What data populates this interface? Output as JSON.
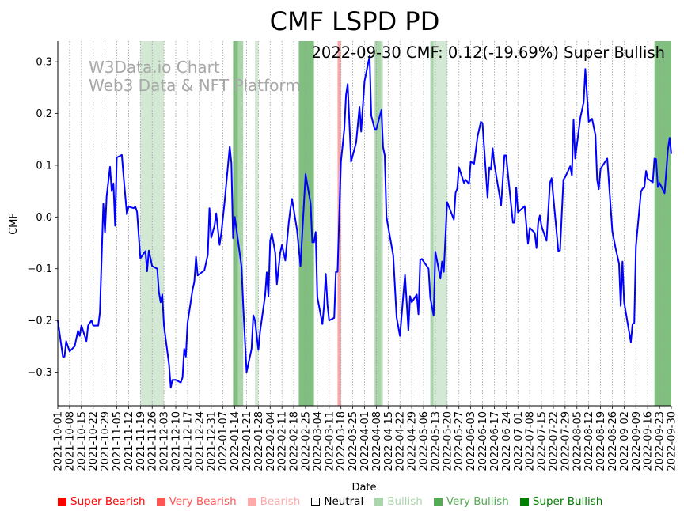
{
  "chart_data": {
    "type": "line",
    "title": "CMF LSPD PD",
    "annotation": "2022-09-30 CMF: 0.12(-19.69%) Super Bullish",
    "watermark": [
      "W3Data.io Chart",
      "Web3 Data & NFT Platform"
    ],
    "xlabel": "Date",
    "ylabel": "CMF",
    "x_start_date": "2021-10-01",
    "x_unit": "days since 2021-10-01",
    "xlim": [
      0,
      364
    ],
    "ylim": [
      -0.365,
      0.34
    ],
    "yticks": [
      -0.3,
      -0.2,
      -0.1,
      0.0,
      0.1,
      0.2,
      0.3
    ],
    "ytick_labels": [
      "−0.3",
      "−0.2",
      "−0.1",
      "0.0",
      "0.1",
      "0.2",
      "0.3"
    ],
    "xtick_labels": [
      "2021-10-01",
      "2021-10-08",
      "2021-10-15",
      "2021-10-22",
      "2021-10-29",
      "2021-11-05",
      "2021-11-12",
      "2021-11-19",
      "2021-11-26",
      "2021-12-03",
      "2021-12-10",
      "2021-12-17",
      "2021-12-24",
      "2021-12-31",
      "2022-01-07",
      "2022-01-14",
      "2022-01-21",
      "2022-01-28",
      "2022-02-04",
      "2022-02-11",
      "2022-02-18",
      "2022-02-25",
      "2022-03-04",
      "2022-03-11",
      "2022-03-18",
      "2022-03-25",
      "2022-04-01",
      "2022-04-08",
      "2022-04-15",
      "2022-04-22",
      "2022-04-29",
      "2022-05-06",
      "2022-05-13",
      "2022-05-20",
      "2022-05-27",
      "2022-06-03",
      "2022-06-10",
      "2022-06-17",
      "2022-06-24",
      "2022-07-01",
      "2022-07-08",
      "2022-07-15",
      "2022-07-22",
      "2022-07-29",
      "2022-08-05",
      "2022-08-12",
      "2022-08-19",
      "2022-08-26",
      "2022-09-02",
      "2022-09-09",
      "2022-09-16",
      "2022-09-23",
      "2022-09-30"
    ],
    "grid": "vertical dotted at each weekly tick",
    "series": [
      {
        "name": "CMF",
        "color": "#0000ff",
        "points": [
          [
            0,
            -0.2
          ],
          [
            3,
            -0.27
          ],
          [
            4,
            -0.27
          ],
          [
            5,
            -0.24
          ],
          [
            7,
            -0.26
          ],
          [
            10,
            -0.25
          ],
          [
            12,
            -0.22
          ],
          [
            13,
            -0.23
          ],
          [
            14,
            -0.21
          ],
          [
            17,
            -0.24
          ],
          [
            18,
            -0.21
          ],
          [
            20,
            -0.2
          ],
          [
            21,
            -0.21
          ],
          [
            24,
            -0.21
          ],
          [
            25,
            -0.185
          ],
          [
            27,
            0.026
          ],
          [
            28,
            -0.03
          ],
          [
            29,
            0.04
          ],
          [
            31,
            0.097
          ],
          [
            32,
            0.05
          ],
          [
            33,
            0.065
          ],
          [
            34,
            -0.017
          ],
          [
            35,
            0.115
          ],
          [
            38,
            0.12
          ],
          [
            39,
            0.08
          ],
          [
            41,
            0.005
          ],
          [
            42,
            0.02
          ],
          [
            45,
            0.017
          ],
          [
            46,
            0.02
          ],
          [
            47,
            0.01
          ],
          [
            49,
            -0.08
          ],
          [
            52,
            -0.066
          ],
          [
            53,
            -0.105
          ],
          [
            54,
            -0.065
          ],
          [
            56,
            -0.095
          ],
          [
            59,
            -0.1
          ],
          [
            60,
            -0.145
          ],
          [
            61,
            -0.165
          ],
          [
            62,
            -0.15
          ],
          [
            63,
            -0.21
          ],
          [
            66,
            -0.285
          ],
          [
            67,
            -0.33
          ],
          [
            68,
            -0.315
          ],
          [
            70,
            -0.315
          ],
          [
            73,
            -0.32
          ],
          [
            74,
            -0.31
          ],
          [
            75,
            -0.255
          ],
          [
            76,
            -0.27
          ],
          [
            77,
            -0.205
          ],
          [
            80,
            -0.14
          ],
          [
            81,
            -0.125
          ],
          [
            82,
            -0.077
          ],
          [
            83,
            -0.113
          ],
          [
            87,
            -0.103
          ],
          [
            89,
            -0.073
          ],
          [
            90,
            0.017
          ],
          [
            91,
            -0.04
          ],
          [
            93,
            -0.017
          ],
          [
            94,
            0.007
          ],
          [
            96,
            -0.054
          ],
          [
            97,
            -0.032
          ],
          [
            99,
            0.03
          ],
          [
            101,
            0.1
          ],
          [
            102,
            0.136
          ],
          [
            103,
            0.104
          ],
          [
            104,
            -0.041
          ],
          [
            105,
            0.0
          ],
          [
            109,
            -0.096
          ],
          [
            110,
            -0.17
          ],
          [
            112,
            -0.3
          ],
          [
            115,
            -0.255
          ],
          [
            116,
            -0.19
          ],
          [
            117,
            -0.2
          ],
          [
            119,
            -0.257
          ],
          [
            120,
            -0.222
          ],
          [
            123,
            -0.152
          ],
          [
            124,
            -0.107
          ],
          [
            125,
            -0.153
          ],
          [
            126,
            -0.046
          ],
          [
            127,
            -0.032
          ],
          [
            129,
            -0.069
          ],
          [
            130,
            -0.13
          ],
          [
            132,
            -0.069
          ],
          [
            133,
            -0.054
          ],
          [
            135,
            -0.084
          ],
          [
            137,
            -0.012
          ],
          [
            138,
            0.015
          ],
          [
            139,
            0.035
          ],
          [
            142,
            -0.026
          ],
          [
            144,
            -0.095
          ],
          [
            147,
            0.083
          ],
          [
            150,
            0.026
          ],
          [
            151,
            -0.049
          ],
          [
            152,
            -0.049
          ],
          [
            153,
            -0.029
          ],
          [
            154,
            -0.155
          ],
          [
            157,
            -0.207
          ],
          [
            158,
            -0.17
          ],
          [
            159,
            -0.11
          ],
          [
            160,
            -0.17
          ],
          [
            161,
            -0.2
          ],
          [
            164,
            -0.195
          ],
          [
            165,
            -0.106
          ],
          [
            166,
            -0.106
          ],
          [
            168,
            0.107
          ],
          [
            170,
            0.171
          ],
          [
            171,
            0.236
          ],
          [
            172,
            0.257
          ],
          [
            174,
            0.107
          ],
          [
            177,
            0.144
          ],
          [
            179,
            0.213
          ],
          [
            180,
            0.165
          ],
          [
            182,
            0.263
          ],
          [
            185,
            0.311
          ],
          [
            186,
            0.196
          ],
          [
            188,
            0.17
          ],
          [
            189,
            0.17
          ],
          [
            192,
            0.207
          ],
          [
            193,
            0.135
          ],
          [
            194,
            0.119
          ],
          [
            195,
            0.0
          ],
          [
            199,
            -0.074
          ],
          [
            201,
            -0.194
          ],
          [
            203,
            -0.23
          ],
          [
            206,
            -0.112
          ],
          [
            208,
            -0.219
          ],
          [
            209,
            -0.153
          ],
          [
            210,
            -0.165
          ],
          [
            213,
            -0.15
          ],
          [
            214,
            -0.188
          ],
          [
            215,
            -0.083
          ],
          [
            216,
            -0.081
          ],
          [
            220,
            -0.1
          ],
          [
            221,
            -0.156
          ],
          [
            223,
            -0.191
          ],
          [
            224,
            -0.067
          ],
          [
            227,
            -0.119
          ],
          [
            228,
            -0.086
          ],
          [
            229,
            -0.106
          ],
          [
            231,
            0.029
          ],
          [
            233,
            0.012
          ],
          [
            235,
            -0.005
          ],
          [
            236,
            0.047
          ],
          [
            237,
            0.055
          ],
          [
            238,
            0.096
          ],
          [
            241,
            0.066
          ],
          [
            242,
            0.072
          ],
          [
            244,
            0.064
          ],
          [
            245,
            0.107
          ],
          [
            247,
            0.103
          ],
          [
            249,
            0.155
          ],
          [
            251,
            0.184
          ],
          [
            252,
            0.181
          ],
          [
            255,
            0.038
          ],
          [
            256,
            0.096
          ],
          [
            257,
            0.092
          ],
          [
            258,
            0.133
          ],
          [
            259,
            0.103
          ],
          [
            263,
            0.023
          ],
          [
            265,
            0.119
          ],
          [
            266,
            0.119
          ],
          [
            270,
            -0.011
          ],
          [
            271,
            -0.011
          ],
          [
            272,
            0.057
          ],
          [
            273,
            0.009
          ],
          [
            277,
            0.021
          ],
          [
            279,
            -0.052
          ],
          [
            280,
            -0.021
          ],
          [
            283,
            -0.031
          ],
          [
            284,
            -0.06
          ],
          [
            285,
            -0.012
          ],
          [
            286,
            0.003
          ],
          [
            287,
            -0.018
          ],
          [
            290,
            -0.046
          ],
          [
            292,
            0.066
          ],
          [
            293,
            0.075
          ],
          [
            297,
            -0.066
          ],
          [
            298,
            -0.064
          ],
          [
            300,
            0.072
          ],
          [
            301,
            0.077
          ],
          [
            304,
            0.098
          ],
          [
            305,
            0.08
          ],
          [
            306,
            0.188
          ],
          [
            307,
            0.113
          ],
          [
            310,
            0.191
          ],
          [
            312,
            0.222
          ],
          [
            313,
            0.286
          ],
          [
            315,
            0.184
          ],
          [
            317,
            0.19
          ],
          [
            319,
            0.158
          ],
          [
            320,
            0.072
          ],
          [
            321,
            0.054
          ],
          [
            322,
            0.093
          ],
          [
            324,
            0.103
          ],
          [
            326,
            0.113
          ],
          [
            329,
            -0.028
          ],
          [
            331,
            -0.061
          ],
          [
            333,
            -0.09
          ],
          [
            334,
            -0.172
          ],
          [
            335,
            -0.086
          ],
          [
            336,
            -0.165
          ],
          [
            340,
            -0.242
          ],
          [
            341,
            -0.207
          ],
          [
            342,
            -0.205
          ],
          [
            343,
            -0.057
          ],
          [
            346,
            0.049
          ],
          [
            347,
            0.055
          ],
          [
            348,
            0.057
          ],
          [
            349,
            0.089
          ],
          [
            350,
            0.074
          ],
          [
            353,
            0.067
          ],
          [
            354,
            0.113
          ],
          [
            355,
            0.112
          ],
          [
            356,
            0.058
          ],
          [
            357,
            0.066
          ],
          [
            360,
            0.046
          ],
          [
            362,
            0.13
          ],
          [
            363,
            0.153
          ],
          [
            364,
            0.122
          ]
        ]
      }
    ],
    "bands": [
      {
        "start": 49,
        "end": 63,
        "level": "Bullish",
        "color": "#d3e9d3"
      },
      {
        "start": 104,
        "end": 107,
        "level": "Super Bullish",
        "color": "#80bf80"
      },
      {
        "start": 107,
        "end": 110,
        "level": "Very Bullish",
        "color": "#aad5aa"
      },
      {
        "start": 117,
        "end": 119,
        "level": "Bullish",
        "color": "#d3e9d3"
      },
      {
        "start": 143,
        "end": 152,
        "level": "Super Bullish",
        "color": "#80bf80"
      },
      {
        "start": 166,
        "end": 168,
        "level": "Bearish",
        "color": "#f5a8a8"
      },
      {
        "start": 188,
        "end": 192,
        "level": "Very Bullish",
        "color": "#aad5aa"
      },
      {
        "start": 192,
        "end": 193,
        "level": "Bullish",
        "color": "#d3e9d3"
      },
      {
        "start": 221,
        "end": 223,
        "level": "Very Bullish",
        "color": "#aad5aa"
      },
      {
        "start": 223,
        "end": 231,
        "level": "Bullish",
        "color": "#d3e9d3"
      },
      {
        "start": 354,
        "end": 364,
        "level": "Super Bullish",
        "color": "#80bf80"
      }
    ],
    "legend": {
      "placement": "bottom",
      "items": [
        {
          "label": "Super Bearish",
          "color": "#ff0000",
          "text_color": "#ff0000"
        },
        {
          "label": "Very Bearish",
          "color": "#ff5555",
          "text_color": "#ff5555"
        },
        {
          "label": "Bearish",
          "color": "#ffaaaa",
          "text_color": "#ffaaaa"
        },
        {
          "label": "Neutral",
          "color": "#ffffff",
          "text_color": "#000000"
        },
        {
          "label": "Bullish",
          "color": "#aad4aa",
          "text_color": "#aad4aa"
        },
        {
          "label": "Very Bullish",
          "color": "#55aa55",
          "text_color": "#55aa55"
        },
        {
          "label": "Super Bullish",
          "color": "#008000",
          "text_color": "#008000"
        }
      ]
    }
  }
}
